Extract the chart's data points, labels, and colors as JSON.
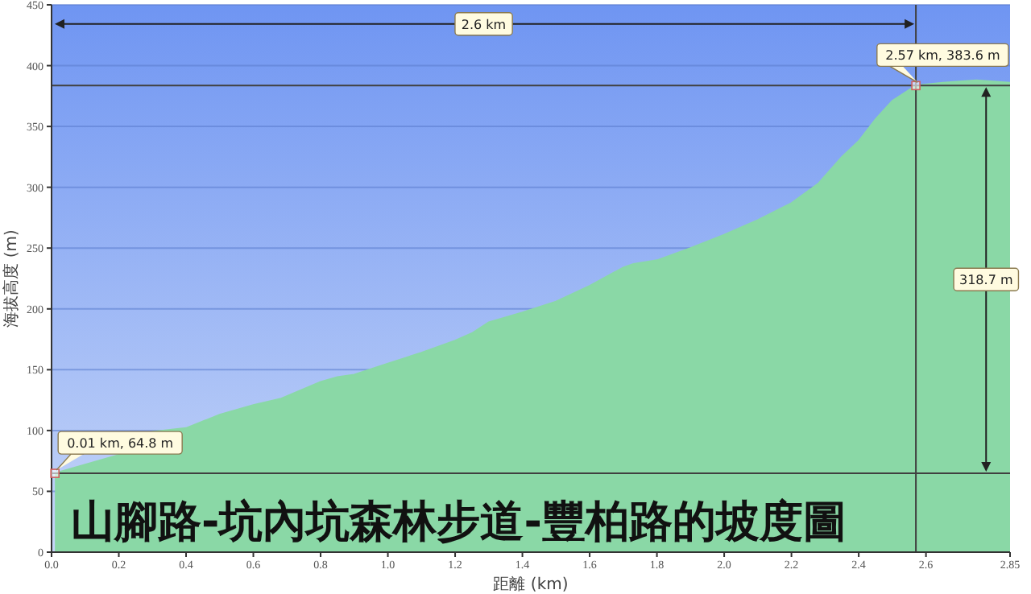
{
  "chart_data": {
    "type": "area",
    "title": "山腳路-坑內坑森林步道-豐柏路的坡度圖",
    "xlabel": "距離 (km)",
    "ylabel": "海拔高度 (m)",
    "series": [
      {
        "color": "#8ad8a6",
        "x": [
          0.01,
          0.1,
          0.2,
          0.3,
          0.4,
          0.5,
          0.6,
          0.68,
          0.8,
          0.85,
          0.9,
          1.0,
          1.1,
          1.2,
          1.25,
          1.3,
          1.4,
          1.5,
          1.6,
          1.7,
          1.73,
          1.8,
          1.9,
          2.0,
          2.1,
          2.2,
          2.28,
          2.35,
          2.4,
          2.45,
          2.5,
          2.57,
          2.65,
          2.75,
          2.8,
          2.85
        ],
        "values": [
          64.8,
          72,
          80,
          99,
          102,
          113,
          121,
          126,
          140,
          144,
          146,
          155,
          164,
          174,
          180,
          189,
          197,
          206,
          219,
          234,
          237,
          240,
          250,
          261,
          273,
          287,
          303,
          325,
          338,
          356,
          371,
          383.6,
          386,
          388,
          387,
          386
        ]
      }
    ],
    "xlim": [
      0,
      2.85
    ],
    "xticks": [
      {
        "value": 0,
        "label": "0.0"
      },
      0.2,
      0.4,
      0.6,
      0.8,
      {
        "value": 1,
        "label": "1.0"
      },
      1.2,
      1.4,
      1.6,
      1.8,
      {
        "value": 2,
        "label": "2.0"
      },
      2.2,
      2.4,
      2.6,
      2.85
    ],
    "ylim": [
      0,
      450
    ],
    "yticks": [
      0,
      50,
      100,
      150,
      200,
      250,
      300,
      350,
      400,
      450
    ],
    "grid": "y",
    "ref_lines": [
      {
        "axis": "y",
        "value": 64.8,
        "color": "#404040"
      },
      {
        "axis": "y",
        "value": 383.6,
        "color": "#404040"
      },
      {
        "axis": "x",
        "value": 2.57,
        "color": "#404040"
      }
    ],
    "annotations": [
      {
        "text": "0.01 km, 64.8 m",
        "x": 0.01,
        "y": 64.8
      },
      {
        "text": "2.57 km, 383.6 m",
        "x": 2.57,
        "y": 383.6
      },
      "2.6 km",
      "318.7 m"
    ]
  }
}
